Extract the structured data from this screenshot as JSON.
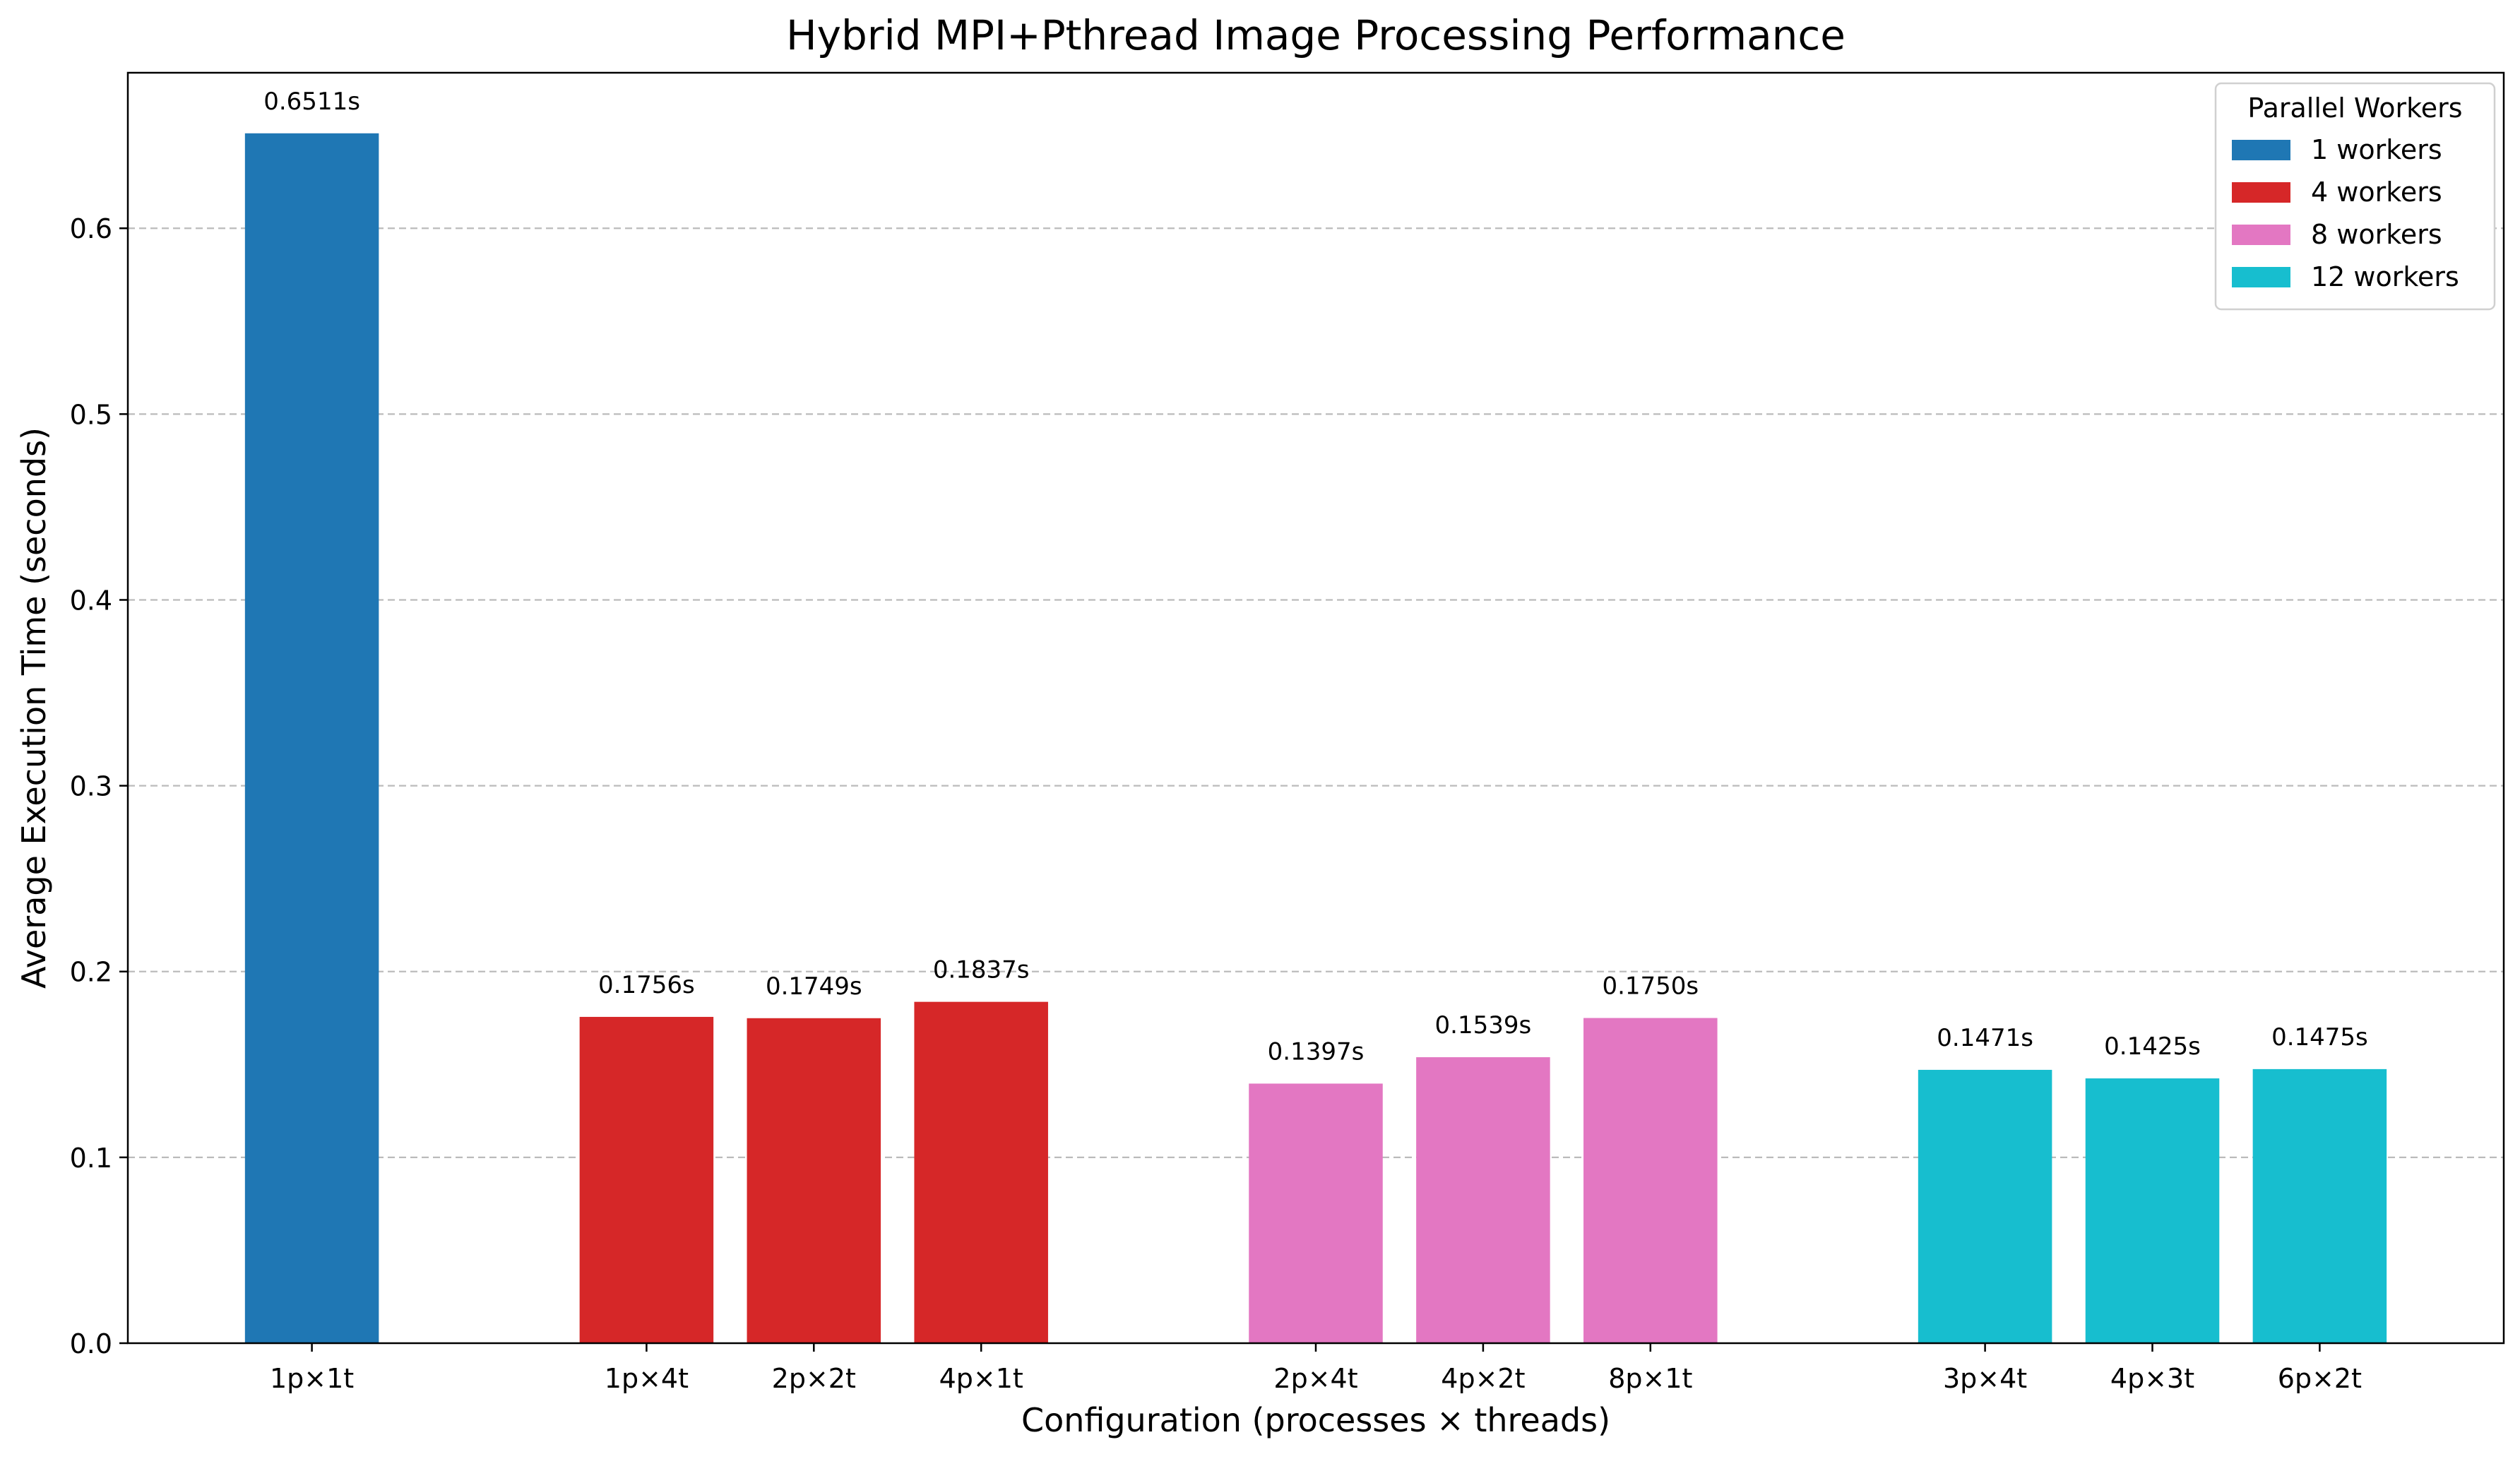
{
  "chart_data": {
    "type": "bar",
    "title": "Hybrid MPI+Pthread Image Processing Performance",
    "xlabel": "Configuration (processes × threads)",
    "ylabel": "Average Execution Time (seconds)",
    "ylim": [
      0,
      0.6837
    ],
    "yticks": [
      0.0,
      0.1,
      0.2,
      0.3,
      0.4,
      0.5,
      0.6
    ],
    "ytick_labels": [
      "0.0",
      "0.1",
      "0.2",
      "0.3",
      "0.4",
      "0.5",
      "0.6"
    ],
    "grid": "y-dashed",
    "legend": {
      "title": "Parallel Workers",
      "placement": "top-right",
      "entries": [
        {
          "label": "1 workers",
          "color": "#1f77b4"
        },
        {
          "label": "4 workers",
          "color": "#d62728"
        },
        {
          "label": "8 workers",
          "color": "#e377c2"
        },
        {
          "label": "12 workers",
          "color": "#17becf"
        }
      ]
    },
    "x": [
      0,
      2,
      3,
      4,
      6,
      7,
      8,
      10,
      11,
      12
    ],
    "xlim": [
      -1.1,
      13.1
    ],
    "categories": [
      "1p×1t",
      "1p×4t",
      "2p×2t",
      "4p×1t",
      "2p×4t",
      "4p×2t",
      "8p×1t",
      "3p×4t",
      "4p×3t",
      "6p×2t"
    ],
    "values": [
      0.6511,
      0.1756,
      0.1749,
      0.1837,
      0.1397,
      0.1539,
      0.175,
      0.1471,
      0.1425,
      0.1475
    ],
    "data_labels": [
      "0.6511s",
      "0.1756s",
      "0.1749s",
      "0.1837s",
      "0.1397s",
      "0.1539s",
      "0.1750s",
      "0.1471s",
      "0.1425s",
      "0.1475s"
    ],
    "group": [
      0,
      1,
      1,
      1,
      2,
      2,
      2,
      3,
      3,
      3
    ]
  }
}
